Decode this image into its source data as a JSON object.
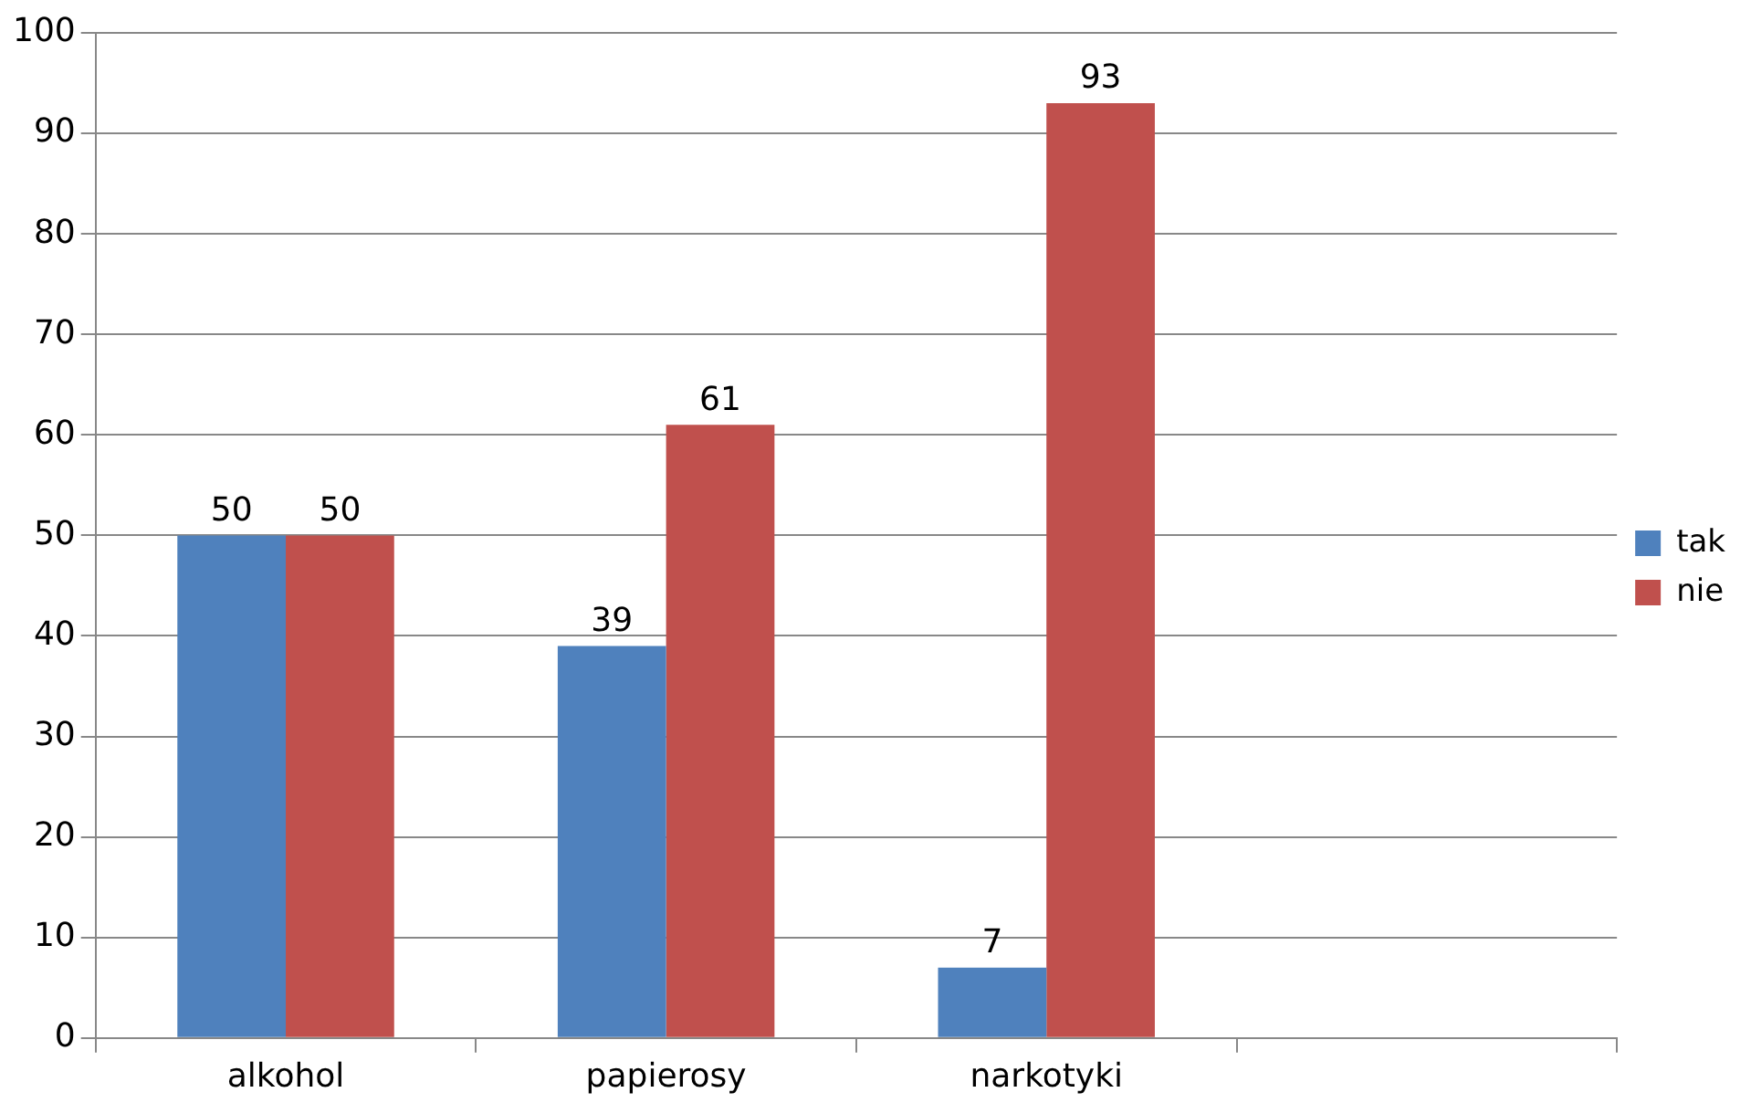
{
  "chart_data": {
    "type": "bar",
    "categories": [
      "alkohol",
      "papierosy",
      "narkotyki",
      null
    ],
    "series": [
      {
        "name": "tak",
        "color": "#4f81bd",
        "values": [
          50,
          39,
          7,
          null
        ]
      },
      {
        "name": "nie",
        "color": "#c0504d",
        "values": [
          50,
          61,
          93,
          null
        ]
      }
    ],
    "ylim": [
      0,
      100
    ],
    "yticks": [
      0,
      10,
      20,
      30,
      40,
      50,
      60,
      70,
      80,
      90,
      100
    ],
    "grid": "y",
    "legend": "right",
    "data_labels": true
  }
}
